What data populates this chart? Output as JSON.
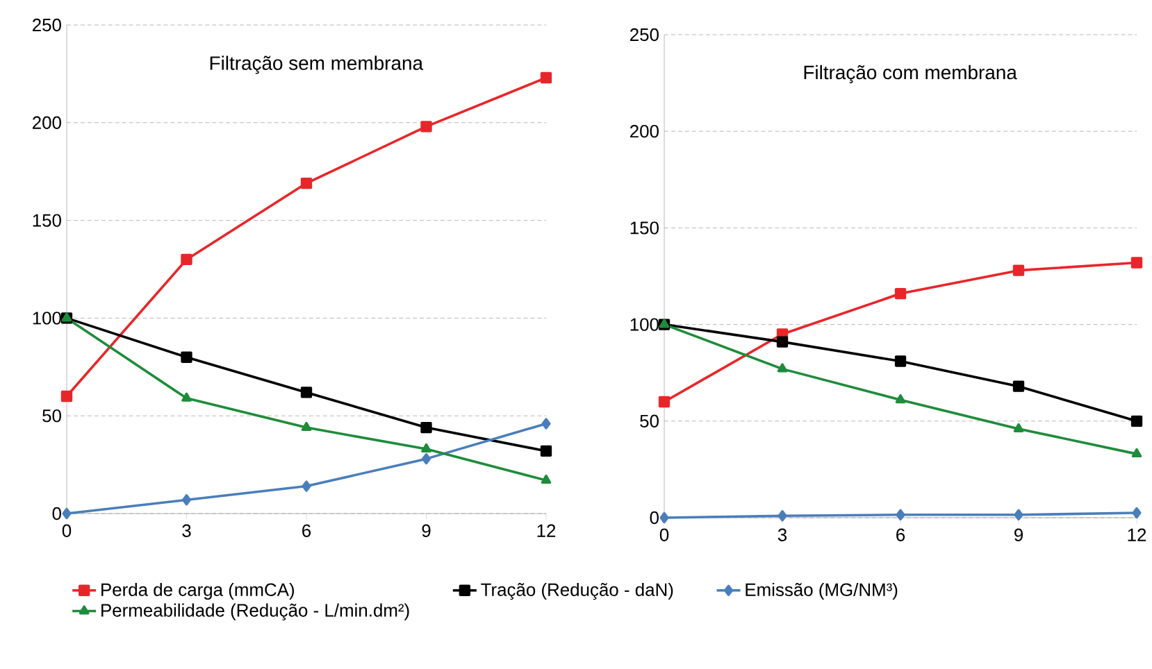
{
  "chart_data": [
    {
      "type": "line",
      "title": "Filtração sem membrana",
      "x": [
        0,
        3,
        6,
        9,
        12
      ],
      "xlim": [
        0,
        12
      ],
      "xticks": [
        0,
        3,
        6,
        9,
        12
      ],
      "ylim": [
        0,
        250
      ],
      "yticks": [
        0,
        50,
        100,
        150,
        200,
        250
      ],
      "grid": "y",
      "legend": "bottom",
      "series": [
        {
          "name": "Perda de carga (mmCA)",
          "color": "#e8262a",
          "marker": "square",
          "values": [
            60,
            130,
            169,
            198,
            223
          ]
        },
        {
          "name": "Tração (Redução - daN)",
          "color": "#000000",
          "marker": "square",
          "values": [
            100,
            80,
            62,
            44,
            32
          ]
        },
        {
          "name": "Emissão (MG/NM³)",
          "color": "#4a7ebb",
          "marker": "diamond",
          "values": [
            0,
            7,
            14,
            28,
            46
          ]
        },
        {
          "name": "Permeabilidade (Redução - L/min.dm²)",
          "color": "#1e8c3a",
          "marker": "triangle",
          "values": [
            100,
            59,
            44,
            33,
            17
          ]
        }
      ]
    },
    {
      "type": "line",
      "title": "Filtração com membrana",
      "x": [
        0,
        3,
        6,
        9,
        12
      ],
      "xlim": [
        0,
        12
      ],
      "xticks": [
        0,
        3,
        6,
        9,
        12
      ],
      "ylim": [
        0,
        250
      ],
      "yticks": [
        0,
        50,
        100,
        150,
        200,
        250
      ],
      "grid": "y",
      "series": [
        {
          "color": "#e8262a",
          "marker": "square",
          "values": [
            60,
            95,
            116,
            128,
            132
          ]
        },
        {
          "color": "#000000",
          "marker": "square",
          "values": [
            100,
            91,
            81,
            68,
            50
          ]
        },
        {
          "color": "#4a7ebb",
          "marker": "diamond",
          "values": [
            0,
            1,
            1.5,
            1.5,
            2.5
          ]
        },
        {
          "color": "#1e8c3a",
          "marker": "triangle",
          "values": [
            100,
            77,
            61,
            46,
            33
          ]
        }
      ]
    }
  ]
}
